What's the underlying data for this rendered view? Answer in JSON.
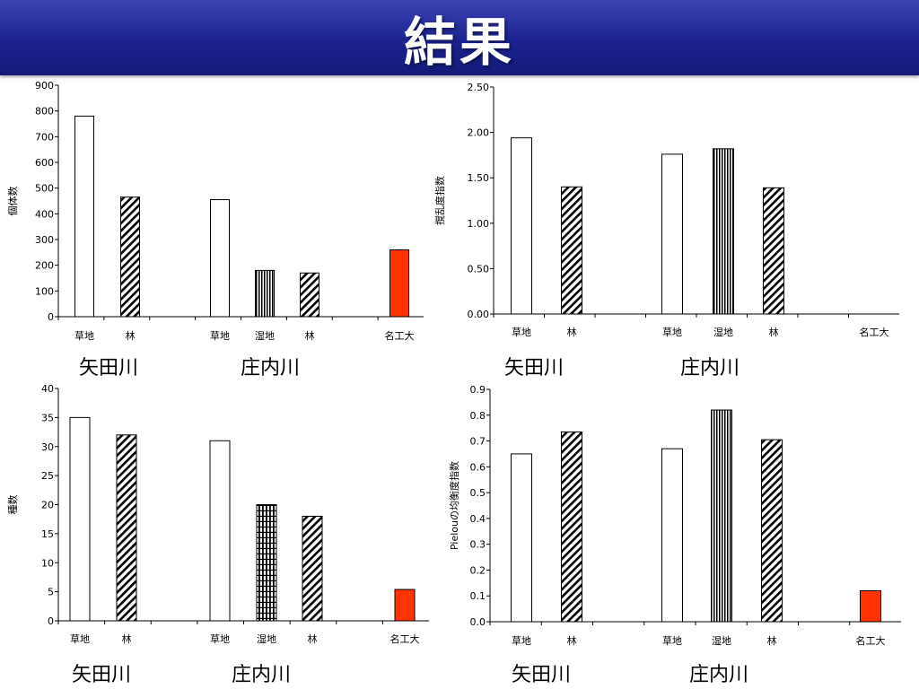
{
  "title": "結果",
  "colors": {
    "accent": "#ff3300",
    "bar_fill": "#ffffff",
    "stroke": "#000000",
    "title_bar": "#1b2290"
  },
  "chart_data": [
    {
      "type": "bar",
      "ylabel": "個体数",
      "ylim": [
        0,
        900
      ],
      "yticks": [
        "0",
        "100",
        "200",
        "300",
        "400",
        "500",
        "600",
        "700",
        "800",
        "900"
      ],
      "categories": [
        "草地",
        "林",
        "草地",
        "湿地",
        "林",
        "名工大"
      ],
      "values": [
        780,
        465,
        455,
        180,
        170,
        260
      ],
      "patterns": [
        "plain",
        "diagonal",
        "plain",
        "vertical",
        "diagonal",
        "accent"
      ],
      "groups": [
        "矢田川",
        "庄内川"
      ]
    },
    {
      "type": "bar",
      "ylabel": "撹乱度指数",
      "ylim": [
        0,
        2.5
      ],
      "yticks": [
        "0.00",
        "0.50",
        "1.00",
        "1.50",
        "2.00",
        "2.50"
      ],
      "categories": [
        "草地",
        "林",
        "草地",
        "湿地",
        "林",
        "名工大"
      ],
      "values": [
        1.94,
        1.4,
        1.76,
        1.82,
        1.39,
        null
      ],
      "patterns": [
        "plain",
        "diagonal",
        "plain",
        "vertical",
        "diagonal",
        "accent"
      ],
      "groups": [
        "矢田川",
        "庄内川"
      ]
    },
    {
      "type": "bar",
      "ylabel": "種数",
      "ylim": [
        0,
        40
      ],
      "yticks": [
        "0",
        "5",
        "10",
        "15",
        "20",
        "25",
        "30",
        "35",
        "40"
      ],
      "categories": [
        "草地",
        "林",
        "草地",
        "湿地",
        "林",
        "名工大"
      ],
      "values": [
        35,
        32,
        31,
        20,
        18,
        5.4
      ],
      "patterns": [
        "plain",
        "diagonal",
        "plain",
        "grid",
        "diagonal",
        "accent"
      ],
      "groups": [
        "矢田川",
        "庄内川"
      ]
    },
    {
      "type": "bar",
      "ylabel": "Pielouの均衡度指数",
      "ylim": [
        0,
        0.9
      ],
      "yticks": [
        "0.0",
        "0.1",
        "0.2",
        "0.3",
        "0.4",
        "0.5",
        "0.6",
        "0.7",
        "0.8",
        "0.9"
      ],
      "categories": [
        "草地",
        "林",
        "草地",
        "湿地",
        "林",
        "名工大"
      ],
      "values": [
        0.65,
        0.735,
        0.67,
        0.82,
        0.705,
        0.12
      ],
      "patterns": [
        "plain",
        "diagonal",
        "plain",
        "vertical",
        "diagonal",
        "accent"
      ],
      "groups": [
        "矢田川",
        "庄内川"
      ]
    }
  ]
}
